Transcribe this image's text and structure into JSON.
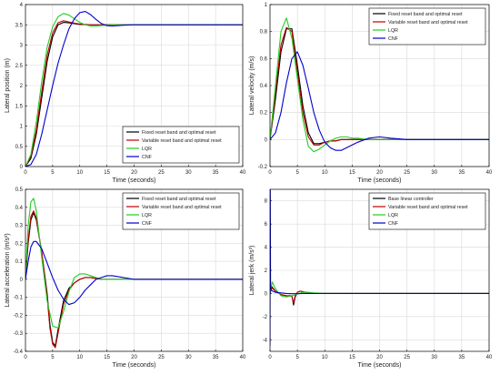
{
  "chart_data": [
    {
      "type": "line",
      "id": "panel-1",
      "xlabel": "Time (seconds)",
      "ylabel": "Lateral position (m)",
      "xlim": [
        0,
        40
      ],
      "ylim": [
        0,
        4
      ],
      "xticks": [
        "0",
        "5",
        "10",
        "15",
        "20",
        "25",
        "30",
        "35",
        "40"
      ],
      "yticks": [
        "0",
        "0.5",
        "1",
        "1.5",
        "2",
        "2.5",
        "3",
        "3.5",
        "4"
      ],
      "grid": true,
      "legend_position": "bottom-right",
      "series": [
        {
          "name": "Fixed reset band and optimal reset",
          "color": "#000000",
          "x": [
            0,
            1,
            2,
            3,
            4,
            5,
            6,
            7,
            8,
            9,
            10,
            12,
            15,
            20,
            25,
            30,
            35,
            40
          ],
          "y": [
            0,
            0.2,
            0.8,
            1.7,
            2.6,
            3.2,
            3.5,
            3.56,
            3.55,
            3.53,
            3.51,
            3.5,
            3.5,
            3.5,
            3.5,
            3.5,
            3.5,
            3.5
          ]
        },
        {
          "name": "Variable reset band and optimal reset",
          "color": "#c00000",
          "x": [
            0,
            1,
            2,
            3,
            4,
            5,
            6,
            7,
            8,
            9,
            10,
            12,
            15,
            20,
            25,
            30,
            35,
            40
          ],
          "y": [
            0,
            0.25,
            0.9,
            1.85,
            2.75,
            3.3,
            3.55,
            3.6,
            3.57,
            3.54,
            3.52,
            3.5,
            3.5,
            3.5,
            3.5,
            3.5,
            3.5,
            3.5
          ]
        },
        {
          "name": "LQR",
          "color": "#22cc22",
          "x": [
            0,
            1,
            2,
            3,
            4,
            5,
            6,
            7,
            8,
            9,
            10,
            11,
            12,
            13,
            15,
            17,
            20,
            25,
            30,
            35,
            40
          ],
          "y": [
            0,
            0.3,
            1.1,
            2.1,
            2.95,
            3.45,
            3.7,
            3.78,
            3.74,
            3.65,
            3.56,
            3.5,
            3.47,
            3.47,
            3.49,
            3.5,
            3.5,
            3.5,
            3.5,
            3.5,
            3.5
          ]
        },
        {
          "name": "CNF",
          "color": "#0000cc",
          "x": [
            0,
            1,
            2,
            3,
            4,
            5,
            6,
            7,
            8,
            9,
            10,
            11,
            12,
            13,
            14,
            15,
            16,
            18,
            20,
            25,
            30,
            35,
            40
          ],
          "y": [
            0,
            0.05,
            0.3,
            0.8,
            1.4,
            2.0,
            2.55,
            3.0,
            3.4,
            3.65,
            3.8,
            3.83,
            3.75,
            3.63,
            3.53,
            3.48,
            3.47,
            3.49,
            3.5,
            3.5,
            3.5,
            3.5,
            3.5
          ]
        }
      ]
    },
    {
      "type": "line",
      "id": "panel-2",
      "xlabel": "Time (seconds)",
      "ylabel": "Lateral velocity (m/s)",
      "xlim": [
        0,
        40
      ],
      "ylim": [
        -0.2,
        1
      ],
      "xticks": [
        "0",
        "5",
        "10",
        "15",
        "20",
        "25",
        "30",
        "35",
        "40"
      ],
      "yticks": [
        "-0.2",
        "0",
        "0.2",
        "0.4",
        "0.6",
        "0.8",
        "1"
      ],
      "grid": true,
      "legend_position": "top-right",
      "series": [
        {
          "name": "Fixed reset band and optimal reset",
          "color": "#000000",
          "x": [
            0,
            1,
            2,
            3,
            4,
            5,
            6,
            7,
            8,
            9,
            10,
            11,
            12,
            13,
            14,
            16,
            18,
            20,
            25,
            30,
            35,
            40
          ],
          "y": [
            0,
            0.3,
            0.65,
            0.82,
            0.82,
            0.55,
            0.25,
            0.05,
            -0.03,
            -0.03,
            -0.02,
            -0.01,
            -0.01,
            0,
            0,
            0,
            0,
            0,
            0,
            0,
            0,
            0
          ]
        },
        {
          "name": "Variable reset band and optimal reset",
          "color": "#c00000",
          "x": [
            0,
            1,
            2,
            3,
            4,
            5,
            6,
            7,
            8,
            9,
            10,
            11,
            12,
            13,
            14,
            16,
            18,
            20,
            25,
            30,
            35,
            40
          ],
          "y": [
            0,
            0.35,
            0.7,
            0.83,
            0.8,
            0.5,
            0.2,
            0.02,
            -0.04,
            -0.04,
            -0.02,
            -0.01,
            -0.01,
            0,
            0,
            0,
            0,
            0,
            0,
            0,
            0,
            0
          ]
        },
        {
          "name": "LQR",
          "color": "#22cc22",
          "x": [
            0,
            1,
            2,
            3,
            4,
            5,
            6,
            7,
            8,
            9,
            10,
            11,
            12,
            13,
            14,
            15,
            16,
            18,
            20,
            25,
            30,
            35,
            40
          ],
          "y": [
            0,
            0.4,
            0.8,
            0.9,
            0.75,
            0.45,
            0.15,
            -0.05,
            -0.09,
            -0.07,
            -0.04,
            -0.01,
            0.01,
            0.02,
            0.02,
            0.01,
            0.01,
            0,
            0,
            0,
            0,
            0,
            0
          ]
        },
        {
          "name": "CNF",
          "color": "#0000cc",
          "x": [
            0,
            1,
            2,
            3,
            4,
            5,
            6,
            7,
            8,
            9,
            10,
            11,
            12,
            13,
            14,
            15,
            16,
            18,
            20,
            22,
            25,
            30,
            35,
            40
          ],
          "y": [
            0,
            0.05,
            0.2,
            0.42,
            0.6,
            0.65,
            0.55,
            0.38,
            0.2,
            0.07,
            -0.02,
            -0.06,
            -0.08,
            -0.08,
            -0.06,
            -0.04,
            -0.02,
            0.01,
            0.02,
            0.01,
            0,
            0,
            0,
            0
          ]
        }
      ]
    },
    {
      "type": "line",
      "id": "panel-3",
      "xlabel": "Time (seconds)",
      "ylabel": "Lateral acceleration (m/s²)",
      "xlim": [
        0,
        40
      ],
      "ylim": [
        -0.4,
        0.5
      ],
      "xticks": [
        "0",
        "5",
        "10",
        "15",
        "20",
        "25",
        "30",
        "35",
        "40"
      ],
      "yticks": [
        "-0.4",
        "-0.3",
        "-0.2",
        "-0.1",
        "0",
        "0.1",
        "0.2",
        "0.3",
        "0.4",
        "0.5"
      ],
      "grid": true,
      "legend_position": "top-right",
      "series": [
        {
          "name": "Fixed reset band and optimal reset",
          "color": "#000000",
          "x": [
            0,
            0.5,
            1,
            1.5,
            2,
            3,
            4,
            4.5,
            5,
            5.5,
            6,
            7,
            8,
            9,
            10,
            11,
            12,
            14,
            16,
            20,
            25,
            30,
            35,
            40
          ],
          "y": [
            0,
            0.2,
            0.33,
            0.37,
            0.33,
            0.15,
            -0.08,
            -0.25,
            -0.35,
            -0.37,
            -0.28,
            -0.12,
            -0.05,
            -0.02,
            0,
            0.01,
            0.01,
            0,
            0,
            0,
            0,
            0,
            0,
            0
          ]
        },
        {
          "name": "Variable reset band and optimal reset",
          "color": "#c00000",
          "x": [
            0,
            0.5,
            1,
            1.5,
            2,
            3,
            4,
            4.5,
            5,
            5.5,
            6,
            7,
            8,
            9,
            10,
            11,
            12,
            14,
            16,
            20,
            25,
            30,
            35,
            40
          ],
          "y": [
            0,
            0.22,
            0.35,
            0.38,
            0.34,
            0.15,
            -0.1,
            -0.27,
            -0.36,
            -0.38,
            -0.3,
            -0.14,
            -0.06,
            -0.02,
            0,
            0.01,
            0.01,
            0,
            0,
            0,
            0,
            0,
            0,
            0
          ]
        },
        {
          "name": "LQR",
          "color": "#22cc22",
          "x": [
            0,
            0.5,
            1,
            1.5,
            2,
            3,
            4,
            5,
            6,
            7,
            8,
            9,
            10,
            11,
            12,
            13,
            14,
            16,
            20,
            25,
            30,
            35,
            40
          ],
          "y": [
            0,
            0.3,
            0.43,
            0.45,
            0.38,
            0.12,
            -0.12,
            -0.26,
            -0.27,
            -0.18,
            -0.07,
            0.01,
            0.03,
            0.03,
            0.02,
            0.01,
            0,
            0,
            0,
            0,
            0,
            0,
            0
          ]
        },
        {
          "name": "CNF",
          "color": "#0000cc",
          "x": [
            0,
            0.5,
            1,
            1.5,
            2,
            3,
            4,
            5,
            6,
            7,
            8,
            9,
            10,
            11,
            12,
            13,
            14,
            15,
            16,
            18,
            20,
            25,
            30,
            35,
            40
          ],
          "y": [
            0,
            0.1,
            0.18,
            0.21,
            0.21,
            0.17,
            0.09,
            0.01,
            -0.06,
            -0.11,
            -0.14,
            -0.13,
            -0.1,
            -0.06,
            -0.03,
            0,
            0.01,
            0.02,
            0.02,
            0.01,
            0,
            0,
            0,
            0,
            0
          ]
        }
      ]
    },
    {
      "type": "line",
      "id": "panel-4",
      "xlabel": "Time (seconds)",
      "ylabel": "Lateral jerk (m/s³)",
      "xlim": [
        0,
        40
      ],
      "ylim": [
        -5,
        9
      ],
      "xticks": [
        "0",
        "5",
        "10",
        "15",
        "20",
        "25",
        "30",
        "35",
        "40"
      ],
      "yticks": [
        "-4",
        "-2",
        "0",
        "2",
        "4",
        "6",
        "8"
      ],
      "grid": true,
      "legend_position": "top-right",
      "series": [
        {
          "name": "Base linear controller",
          "color": "#000000",
          "x": [
            0,
            0.3,
            1,
            2,
            3,
            4,
            4.3,
            4.6,
            5,
            5.5,
            6,
            7,
            8,
            10,
            15,
            20,
            25,
            30,
            35,
            40
          ],
          "y": [
            0,
            0.6,
            0.2,
            -0.1,
            -0.2,
            -0.2,
            -1.0,
            -0.3,
            0.1,
            0.2,
            0.15,
            0.05,
            0,
            0,
            0,
            0,
            0,
            0,
            0,
            0
          ]
        },
        {
          "name": "Variable reset band and optimal reset",
          "color": "#c00000",
          "x": [
            0,
            0.3,
            1,
            2,
            3,
            4,
            4.3,
            4.6,
            5,
            5.5,
            6,
            7,
            8,
            10,
            15,
            20,
            25,
            30,
            35,
            40
          ],
          "y": [
            0,
            0.5,
            0.2,
            -0.1,
            -0.2,
            -0.25,
            -0.8,
            -0.2,
            0.1,
            0.2,
            0.15,
            0.05,
            0,
            0,
            0,
            0,
            0,
            0,
            0,
            0
          ]
        },
        {
          "name": "LQR",
          "color": "#22cc22",
          "x": [
            0,
            0.4,
            1,
            2,
            3,
            4,
            5,
            6,
            7,
            8,
            10,
            15,
            20,
            25,
            30,
            35,
            40
          ],
          "y": [
            0,
            1.0,
            0.4,
            -0.2,
            -0.3,
            -0.2,
            -0.05,
            0.1,
            0.1,
            0.05,
            0,
            0,
            0,
            0,
            0,
            0,
            0
          ]
        },
        {
          "name": "CNF",
          "color": "#0000cc",
          "x": [
            0,
            0.05,
            0.1,
            0.2,
            0.5,
            1,
            2,
            3,
            4,
            5,
            6,
            8,
            10,
            15,
            20,
            25,
            30,
            35,
            40
          ],
          "y": [
            -4.5,
            9,
            0.8,
            0.3,
            0.2,
            0.1,
            0.05,
            0,
            -0.02,
            -0.02,
            0,
            0,
            0,
            0,
            0,
            0,
            0,
            0,
            0
          ]
        }
      ]
    }
  ]
}
